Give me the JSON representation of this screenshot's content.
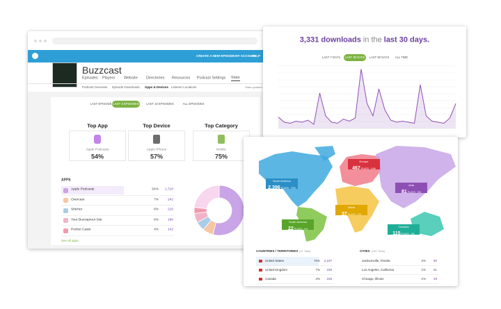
{
  "app": {
    "nav": [
      "CREATE A NEW EPISODE",
      "MY ACCOUNT",
      "HELP"
    ],
    "podcast_name": "Buzzcast",
    "tabs": [
      "Episodes",
      "Players",
      "Website",
      "Directories",
      "Resources",
      "Podcast Settings",
      "Stats"
    ],
    "subtabs": [
      "Podcast Overview",
      "Episode Downloads",
      "Apps & Devices",
      "Listener Locations"
    ],
    "updated": "Stats updated",
    "filters": [
      "LAST EPISODE",
      "LAST 3 EPISODES",
      "LAST 10 EPISODES",
      "ALL EPISODES"
    ],
    "tops": [
      {
        "heading": "Top App",
        "label": "Apple Podcasts",
        "value": "54%"
      },
      {
        "heading": "Top Device",
        "label": "Apple iPhone",
        "value": "57%"
      },
      {
        "heading": "Top Category",
        "label": "Mobile",
        "value": "75%"
      }
    ],
    "apps": {
      "heading": "APPS",
      "rows": [
        {
          "name": "Apple Podcasts",
          "share": "54%",
          "plays": "1,710",
          "color": "#c9a4e6"
        },
        {
          "name": "Overcast",
          "share": "7%",
          "plays": "242",
          "color": "#f6c7a4"
        },
        {
          "name": "Stitcher",
          "share": "6%",
          "plays": "210",
          "color": "#a9cde8"
        },
        {
          "name": "Your Buzzsprout Site",
          "share": "6%",
          "plays": "190",
          "color": "#f0b3c8"
        },
        {
          "name": "Pocket Casts",
          "share": "4%",
          "plays": "142",
          "color": "#f29ab0"
        }
      ],
      "link": "See all apps"
    }
  },
  "downloads": {
    "count": "3,331 downloads",
    "mid": "in the",
    "period": "last 30 days.",
    "filters": [
      "LAST 7 DAYS",
      "LAST 30 DAYS",
      "LAST 90 DAYS",
      "ALL TIME"
    ],
    "chart": {
      "type": "line",
      "color": "#8e4fb5",
      "ylim": [
        0,
        300
      ],
      "values": [
        55,
        30,
        25,
        35,
        30,
        40,
        20,
        170,
        60,
        30,
        25,
        45,
        35,
        50,
        285,
        120,
        60,
        190,
        90,
        40,
        30,
        35,
        30,
        25,
        210,
        60,
        35,
        30,
        25,
        50,
        120
      ]
    }
  },
  "map": {
    "regions": [
      {
        "name": "North America",
        "count": "2,396",
        "detail": "PLAYS · 72%"
      },
      {
        "name": "Europe",
        "count": "467",
        "detail": "PLAYS · 14%"
      },
      {
        "name": "Asia",
        "count": "81",
        "detail": "PLAYS · 2%"
      },
      {
        "name": "Africa",
        "count": "37",
        "detail": "PLAYS · 1%"
      },
      {
        "name": "South America",
        "count": "22",
        "detail": "PLAYS · 1%"
      },
      {
        "name": "Oceania",
        "count": "115",
        "detail": "PLAYS · 3%"
      }
    ]
  },
  "countries": {
    "heading": "COUNTRIES / TERRITORIES",
    "total": "(37 Total)",
    "rows": [
      {
        "name": "United States",
        "share": "70%",
        "plays": "2,197"
      },
      {
        "name": "United Kingdom",
        "share": "7%",
        "plays": "236"
      },
      {
        "name": "Canada",
        "share": "4%",
        "plays": "155"
      }
    ]
  },
  "cities": {
    "heading": "CITIES",
    "total": "(297 Total)",
    "rows": [
      {
        "name": "Jacksonville, Florida",
        "share": "2%",
        "plays": "80"
      },
      {
        "name": "Los Angeles, California",
        "share": "1%",
        "plays": "61"
      },
      {
        "name": "Chicago, Illinois",
        "share": "1%",
        "plays": "49"
      }
    ]
  }
}
